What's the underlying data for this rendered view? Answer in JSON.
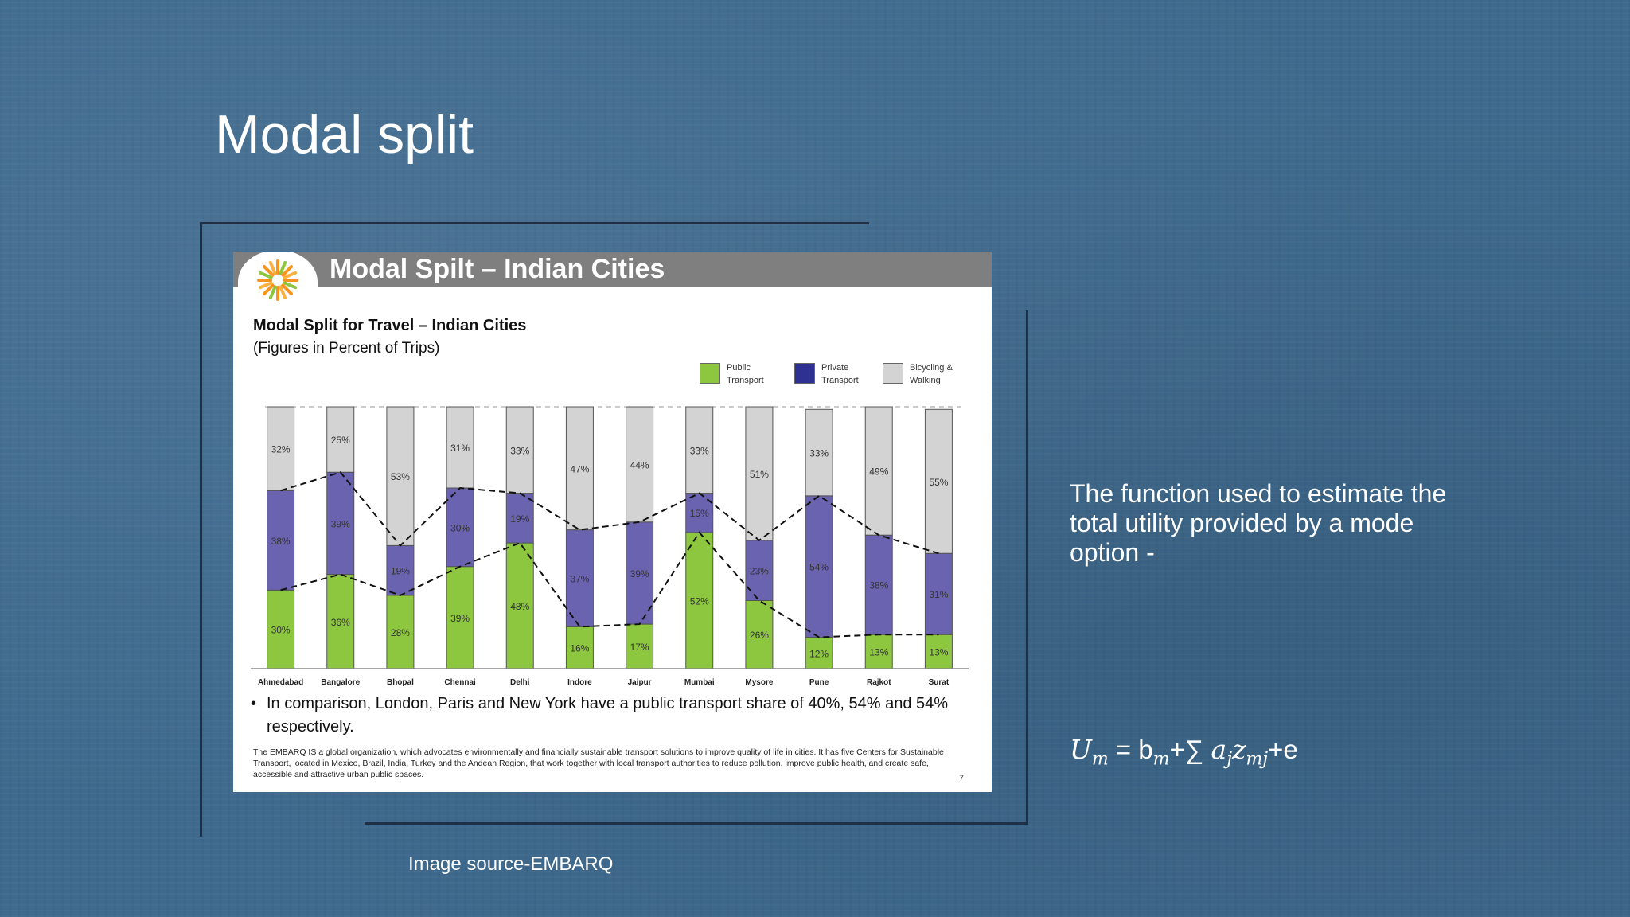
{
  "slide": {
    "title": "Modal split",
    "side_text": "The function used to estimate the total utility provided by a mode option -",
    "formula": {
      "U": "U",
      "U_sub": "m",
      "eq": " = b",
      "b_sub": "m",
      "plus_sum": "+∑ ",
      "a": "a",
      "a_sub": "j",
      "z": "z",
      "z_sub": "mj",
      "tail": "+e"
    },
    "caption": "Image source-EMBARQ"
  },
  "embedded_slide": {
    "header_title": "Modal Spilt – Indian Cities",
    "page_number": "7",
    "bullet": "In comparison, London, Paris and New York have a public transport share of 40%, 54% and 54% respectively.",
    "note": "The EMBARQ IS a global organization, which advocates environmentally and financially sustainable transport solutions to improve quality of life in cities. It has five Centers for Sustainable Transport, located in Mexico, Brazil, India, Turkey and the Andean Region, that work together with local transport authorities to reduce pollution, improve public health, and create safe, accessible and attractive urban public spaces."
  },
  "chart_data": {
    "type": "bar",
    "stacked": true,
    "title": "Modal Split for Travel – Indian Cities",
    "subtitle": "(Figures in Percent of Trips)",
    "legend_position": "top-right",
    "categories": [
      "Ahmedabad",
      "Bangalore",
      "Bhopal",
      "Chennai",
      "Delhi",
      "Indore",
      "Jaipur",
      "Mumbai",
      "Mysore",
      "Pune",
      "Rajkot",
      "Surat"
    ],
    "series": [
      {
        "name": "Public Transport",
        "color": "#8dc63f",
        "values": [
          30,
          36,
          28,
          39,
          48,
          16,
          17,
          52,
          26,
          12,
          13,
          13
        ]
      },
      {
        "name": "Private Transport",
        "color": "#6a63b0",
        "values": [
          38,
          39,
          19,
          30,
          19,
          37,
          39,
          15,
          23,
          54,
          38,
          31
        ]
      },
      {
        "name": "Bicycling & Walking",
        "color": "#d3d3d3",
        "values": [
          32,
          25,
          53,
          31,
          33,
          47,
          44,
          33,
          51,
          33,
          49,
          55
        ]
      }
    ],
    "legend_swatch_colors": [
      "#8dc63f",
      "#2e3192",
      "#d3d3d3"
    ],
    "ylim": [
      0,
      100
    ]
  }
}
